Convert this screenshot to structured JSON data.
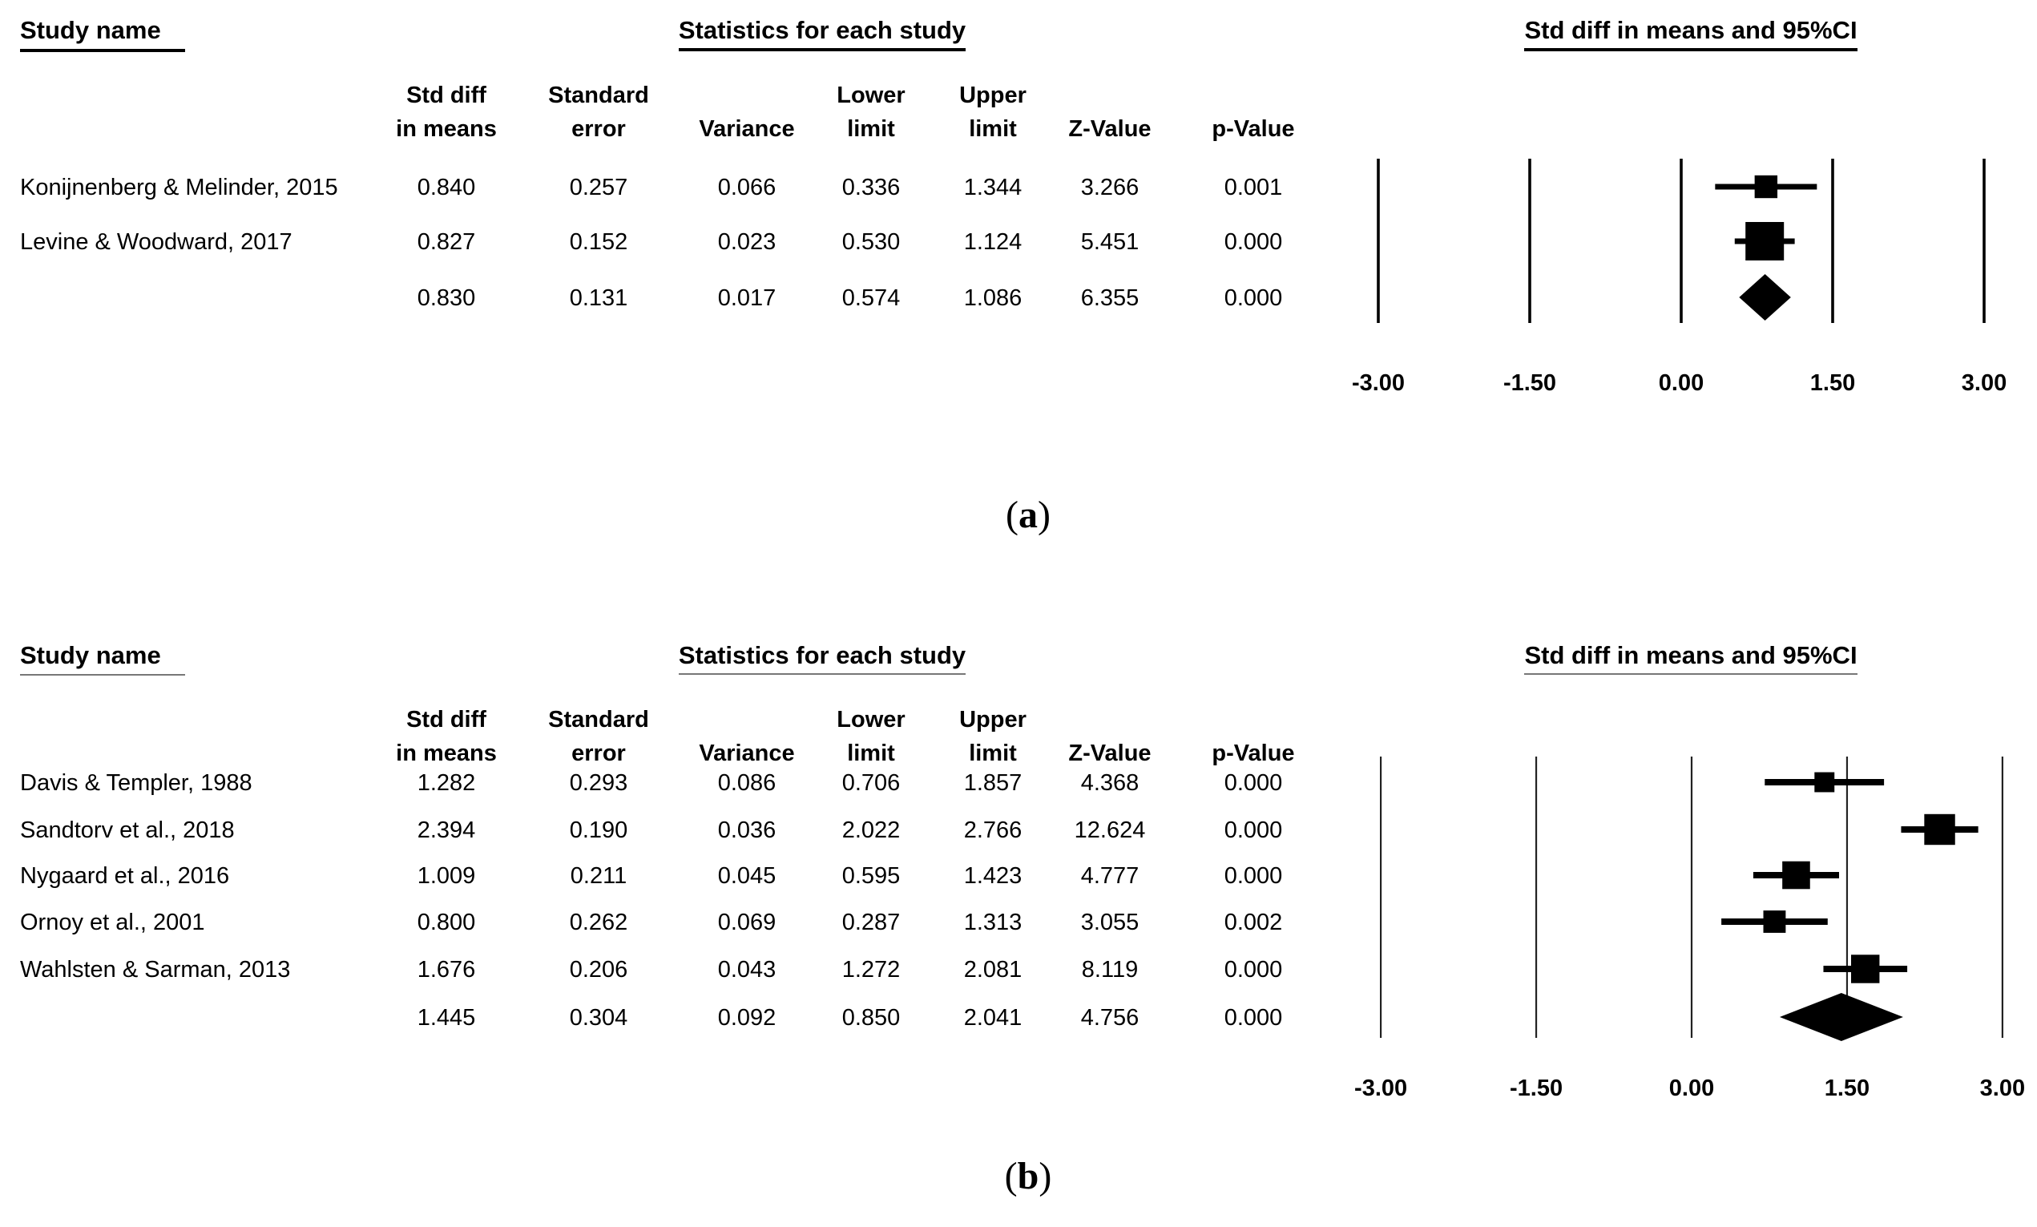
{
  "colors": {
    "ink": "#000000",
    "background": "#ffffff",
    "grid_b": "#333333"
  },
  "chart_data": [
    {
      "type": "forest",
      "panel": "a",
      "label_open": "(",
      "label_letter": "a",
      "label_close": ")",
      "title_left": "Study name",
      "title_stats": "Statistics for each study",
      "title_plot": "Std diff in means and 95%CI",
      "headers": [
        {
          "line1": "Std diff",
          "line2": "in means"
        },
        {
          "line1": "Standard",
          "line2": "error"
        },
        {
          "line1": "",
          "line2": "Variance"
        },
        {
          "line1": "Lower",
          "line2": "limit"
        },
        {
          "line1": "Upper",
          "line2": "limit"
        },
        {
          "line1": "",
          "line2": "Z-Value"
        },
        {
          "line1": "",
          "line2": "p-Value"
        }
      ],
      "studies": [
        {
          "name": "Konijnenberg & Melinder, 2015",
          "std_diff": "0.840",
          "standard_error": "0.257",
          "variance": "0.066",
          "lower_limit": "0.336",
          "upper_limit": "1.344",
          "z_value": "3.266",
          "p_value": "0.001"
        },
        {
          "name": "Levine & Woodward, 2017",
          "std_diff": "0.827",
          "standard_error": "0.152",
          "variance": "0.023",
          "lower_limit": "0.530",
          "upper_limit": "1.124",
          "z_value": "5.451",
          "p_value": "0.000"
        }
      ],
      "pooled": {
        "std_diff": "0.830",
        "standard_error": "0.131",
        "variance": "0.017",
        "lower_limit": "0.574",
        "upper_limit": "1.086",
        "z_value": "6.355",
        "p_value": "0.000"
      },
      "x_ticks": [
        -3,
        -1.5,
        0,
        1.5,
        3
      ],
      "x_tick_labels": [
        "-3.00",
        "-1.50",
        "0.00",
        "1.50",
        "3.00"
      ],
      "xlim": [
        -3,
        3
      ]
    },
    {
      "type": "forest",
      "panel": "b",
      "label_open": "(",
      "label_letter": "b",
      "label_close": ")",
      "title_left": "Study name",
      "title_stats": "Statistics for each study",
      "title_plot": "Std diff in means and 95%CI",
      "headers": [
        {
          "line1": "Std diff",
          "line2": "in means"
        },
        {
          "line1": "Standard",
          "line2": "error"
        },
        {
          "line1": "",
          "line2": "Variance"
        },
        {
          "line1": "Lower",
          "line2": "limit"
        },
        {
          "line1": "Upper",
          "line2": "limit"
        },
        {
          "line1": "",
          "line2": "Z-Value"
        },
        {
          "line1": "",
          "line2": "p-Value"
        }
      ],
      "studies": [
        {
          "name": "Davis & Templer, 1988",
          "std_diff": "1.282",
          "standard_error": "0.293",
          "variance": "0.086",
          "lower_limit": "0.706",
          "upper_limit": "1.857",
          "z_value": "4.368",
          "p_value": "0.000"
        },
        {
          "name": "Sandtorv et al., 2018",
          "std_diff": "2.394",
          "standard_error": "0.190",
          "variance": "0.036",
          "lower_limit": "2.022",
          "upper_limit": "2.766",
          "z_value": "12.624",
          "p_value": "0.000"
        },
        {
          "name": "Nygaard et al., 2016",
          "std_diff": "1.009",
          "standard_error": "0.211",
          "variance": "0.045",
          "lower_limit": "0.595",
          "upper_limit": "1.423",
          "z_value": "4.777",
          "p_value": "0.000"
        },
        {
          "name": "Ornoy et al., 2001",
          "std_diff": "0.800",
          "standard_error": "0.262",
          "variance": "0.069",
          "lower_limit": "0.287",
          "upper_limit": "1.313",
          "z_value": "3.055",
          "p_value": "0.002"
        },
        {
          "name": "Wahlsten & Sarman, 2013",
          "std_diff": "1.676",
          "standard_error": "0.206",
          "variance": "0.043",
          "lower_limit": "1.272",
          "upper_limit": "2.081",
          "z_value": "8.119",
          "p_value": "0.000"
        }
      ],
      "pooled": {
        "std_diff": "1.445",
        "standard_error": "0.304",
        "variance": "0.092",
        "lower_limit": "0.850",
        "upper_limit": "2.041",
        "z_value": "4.756",
        "p_value": "0.000"
      },
      "x_ticks": [
        -3,
        -1.5,
        0,
        1.5,
        3
      ],
      "x_tick_labels": [
        "-3.00",
        "-1.50",
        "0.00",
        "1.50",
        "3.00"
      ],
      "xlim": [
        -3,
        3
      ]
    }
  ]
}
